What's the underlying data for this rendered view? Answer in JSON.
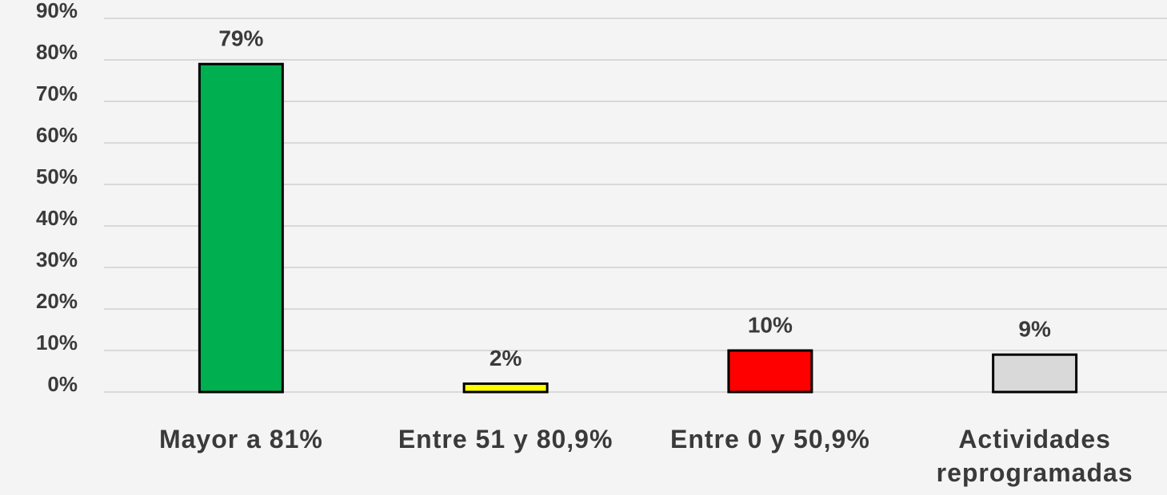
{
  "chart_data": {
    "type": "bar",
    "categories": [
      "Mayor a 81%",
      "Entre 51 y 80,9%",
      "Entre 0 y 50,9%",
      "Actividades reprogramadas"
    ],
    "values": [
      79,
      2,
      10,
      9
    ],
    "value_labels": [
      "79%",
      "2%",
      "10%",
      "9%"
    ],
    "colors": [
      "#00b050",
      "#ffff00",
      "#ff0000",
      "#d9d9d9"
    ],
    "ylim": [
      0,
      90
    ],
    "yticks": [
      {
        "value": 0,
        "label": "0%"
      },
      {
        "value": 10,
        "label": "10%"
      },
      {
        "value": 20,
        "label": "20%"
      },
      {
        "value": 30,
        "label": "30%"
      },
      {
        "value": 40,
        "label": "40%"
      },
      {
        "value": 50,
        "label": "50%"
      },
      {
        "value": 60,
        "label": "60%"
      },
      {
        "value": 70,
        "label": "70%"
      },
      {
        "value": 80,
        "label": "80%"
      },
      {
        "value": 90,
        "label": "90%"
      }
    ],
    "grid": true
  }
}
